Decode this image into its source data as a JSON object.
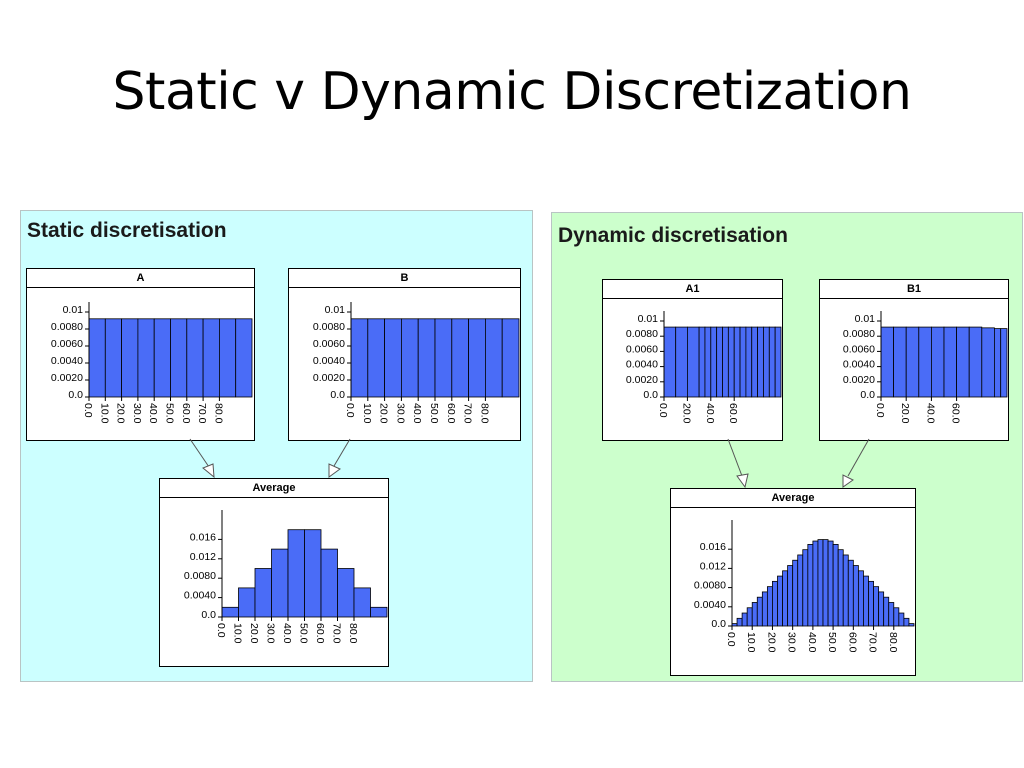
{
  "slide": {
    "title": "Static v Dynamic Discretization"
  },
  "panels": {
    "static": {
      "heading": "Static discretisation"
    },
    "dynamic": {
      "heading": "Dynamic discretisation"
    }
  },
  "colors": {
    "bar": "#4a6cf7",
    "static_bg": "#ccffff",
    "dynamic_bg": "#ccffcc"
  },
  "chart_data": [
    {
      "id": "static-a",
      "type": "bar",
      "title": "A",
      "bin_edges": [
        0,
        10,
        20,
        30,
        40,
        50,
        60,
        70,
        80,
        90,
        100
      ],
      "values": [
        0.0092,
        0.0092,
        0.0092,
        0.0092,
        0.0092,
        0.0092,
        0.0092,
        0.0092,
        0.0092,
        0.0092
      ],
      "ylim": [
        0,
        0.01
      ],
      "yticks": [
        "0.01",
        "0.0080",
        "0.0060",
        "0.0040",
        "0.0020",
        "0.0"
      ],
      "xticks": [
        "0.0",
        "10.0",
        "20.0",
        "30.0",
        "40.0",
        "50.0",
        "60.0",
        "70.0",
        "80.0"
      ]
    },
    {
      "id": "static-b",
      "type": "bar",
      "title": "B",
      "bin_edges": [
        0,
        10,
        20,
        30,
        40,
        50,
        60,
        70,
        80,
        90,
        100
      ],
      "values": [
        0.0092,
        0.0092,
        0.0092,
        0.0092,
        0.0092,
        0.0092,
        0.0092,
        0.0092,
        0.0092,
        0.0092
      ],
      "ylim": [
        0,
        0.01
      ],
      "yticks": [
        "0.01",
        "0.0080",
        "0.0060",
        "0.0040",
        "0.0020",
        "0.0"
      ],
      "xticks": [
        "0.0",
        "10.0",
        "20.0",
        "30.0",
        "40.0",
        "50.0",
        "60.0",
        "70.0",
        "80.0"
      ]
    },
    {
      "id": "static-avg",
      "type": "bar",
      "title": "Average",
      "bin_edges": [
        0,
        10,
        20,
        30,
        40,
        50,
        60,
        70,
        80,
        90,
        100
      ],
      "values": [
        0.002,
        0.006,
        0.01,
        0.014,
        0.018,
        0.018,
        0.014,
        0.01,
        0.006,
        0.002
      ],
      "ylim": [
        0,
        0.02
      ],
      "yticks": [
        "0.016",
        "0.012",
        "0.0080",
        "0.0040",
        "0.0"
      ],
      "xticks": [
        "0.0",
        "10.0",
        "20.0",
        "30.0",
        "40.0",
        "50.0",
        "60.0",
        "70.0",
        "80.0"
      ]
    },
    {
      "id": "dynamic-a1",
      "type": "bar",
      "title": "A1",
      "bin_edges": [
        0,
        10,
        20,
        30,
        35,
        40,
        45,
        50,
        55,
        60,
        65,
        70,
        75,
        80,
        85,
        90,
        95,
        100
      ],
      "values": [
        0.0092,
        0.0092,
        0.0092,
        0.0092,
        0.0092,
        0.0092,
        0.0092,
        0.0092,
        0.0092,
        0.0092,
        0.0092,
        0.0092,
        0.0092,
        0.0092,
        0.0092,
        0.0092,
        0.0092
      ],
      "ylim": [
        0,
        0.01
      ],
      "yticks": [
        "0.01",
        "0.0080",
        "0.0060",
        "0.0040",
        "0.0020",
        "0.0"
      ],
      "xticks": [
        "0.0",
        "20.0",
        "40.0",
        "60.0"
      ]
    },
    {
      "id": "dynamic-b1",
      "type": "bar",
      "title": "B1",
      "bin_edges": [
        0,
        10,
        20,
        30,
        40,
        50,
        60,
        70,
        80,
        90,
        95,
        100
      ],
      "values": [
        0.0092,
        0.0092,
        0.0092,
        0.0092,
        0.0092,
        0.0092,
        0.0092,
        0.0092,
        0.0091,
        0.009,
        0.009
      ],
      "ylim": [
        0,
        0.01
      ],
      "yticks": [
        "0.01",
        "0.0080",
        "0.0060",
        "0.0040",
        "0.0020",
        "0.0"
      ],
      "xticks": [
        "0.0",
        "20.0",
        "40.0",
        "60.0"
      ]
    },
    {
      "id": "dynamic-avg",
      "type": "bar",
      "title": "Average",
      "bin_edges": [
        0,
        2.5,
        5,
        7.5,
        10,
        12.5,
        15,
        17.5,
        20,
        22.5,
        25,
        27.5,
        30,
        32.5,
        35,
        37.5,
        40,
        42.5,
        45,
        47.5,
        50,
        52.5,
        55,
        57.5,
        60,
        62.5,
        65,
        67.5,
        70,
        72.5,
        75,
        77.5,
        80,
        82.5,
        85,
        87.5,
        90
      ],
      "values": [
        0.0005,
        0.0016,
        0.0027,
        0.0038,
        0.0049,
        0.006,
        0.0071,
        0.0082,
        0.0093,
        0.0104,
        0.0115,
        0.0126,
        0.0137,
        0.0148,
        0.0159,
        0.017,
        0.0177,
        0.018,
        0.018,
        0.0177,
        0.017,
        0.0159,
        0.0148,
        0.0137,
        0.0126,
        0.0115,
        0.0104,
        0.0093,
        0.0082,
        0.0071,
        0.006,
        0.0049,
        0.0038,
        0.0027,
        0.0016,
        0.0005
      ],
      "ylim": [
        0,
        0.02
      ],
      "yticks": [
        "0.016",
        "0.012",
        "0.0080",
        "0.0040",
        "0.0"
      ],
      "xticks": [
        "0.0",
        "10.0",
        "20.0",
        "30.0",
        "40.0",
        "50.0",
        "60.0",
        "70.0",
        "80.0"
      ]
    }
  ]
}
